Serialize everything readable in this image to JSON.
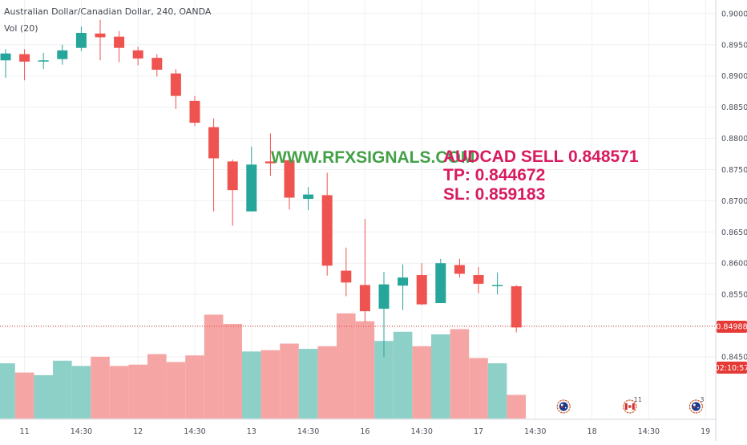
{
  "header": {
    "symbol_line": "Australian Dollar/Canadian Dollar, 240, OANDA",
    "volume_label": "Vol (20)"
  },
  "colors": {
    "up": "#26a69a",
    "down": "#ef5350",
    "vol_up": "#8dd0c8",
    "vol_down": "#f6a5a5",
    "grid": "#eef0f3",
    "price_line": "#e53935",
    "website": "#43a047",
    "signal": "#d81b60"
  },
  "annotations": {
    "website": "WWW.RFXSIGNALS.COM",
    "signal": "AUDCAD SELL 0.848571",
    "tp": "TP:  0.844672",
    "sl": "SL: 0.859183"
  },
  "price_axis": {
    "current_price_label": "0.84988",
    "countdown_label": "02:10:57"
  },
  "events": [
    {
      "index": 29.5,
      "icon": "australia-flag-icon",
      "count": ""
    },
    {
      "index": 33,
      "icon": "canada-flag-icon",
      "count": "11"
    },
    {
      "index": 36.5,
      "icon": "australia-flag-icon",
      "count": "3"
    }
  ],
  "chart_data": {
    "type": "candlestick",
    "symbol": "Australian Dollar/Canadian Dollar",
    "interval": "240",
    "source": "OANDA",
    "ylim": [
      0.8405,
      0.9005
    ],
    "yticks": [
      "0.90000",
      "0.89500",
      "0.89000",
      "0.88500",
      "0.88000",
      "0.87500",
      "0.87000",
      "0.86500",
      "0.86000",
      "0.85500",
      "0.85000",
      "0.84500"
    ],
    "xticks": [
      {
        "index": 1,
        "label": "11"
      },
      {
        "index": 4,
        "label": "14:30"
      },
      {
        "index": 7,
        "label": "12"
      },
      {
        "index": 10,
        "label": "14:30"
      },
      {
        "index": 13,
        "label": "13"
      },
      {
        "index": 16,
        "label": "14:30"
      },
      {
        "index": 19,
        "label": "16"
      },
      {
        "index": 22,
        "label": "14:30"
      },
      {
        "index": 25,
        "label": "17"
      },
      {
        "index": 28,
        "label": "14:30"
      },
      {
        "index": 31,
        "label": "18"
      },
      {
        "index": 34,
        "label": "14:30"
      },
      {
        "index": 37,
        "label": "19"
      }
    ],
    "last_price": 0.84988,
    "candles": [
      {
        "o": 0.8925,
        "h": 0.8943,
        "l": 0.8897,
        "c": 0.8936
      },
      {
        "o": 0.8935,
        "h": 0.8943,
        "l": 0.8893,
        "c": 0.8923
      },
      {
        "o": 0.8923,
        "h": 0.8937,
        "l": 0.8911,
        "c": 0.8925
      },
      {
        "o": 0.8927,
        "h": 0.895,
        "l": 0.8918,
        "c": 0.8941
      },
      {
        "o": 0.8945,
        "h": 0.8979,
        "l": 0.894,
        "c": 0.8969
      },
      {
        "o": 0.8968,
        "h": 0.899,
        "l": 0.8925,
        "c": 0.8962
      },
      {
        "o": 0.8963,
        "h": 0.8972,
        "l": 0.8922,
        "c": 0.8945
      },
      {
        "o": 0.8941,
        "h": 0.8947,
        "l": 0.8917,
        "c": 0.8928
      },
      {
        "o": 0.8929,
        "h": 0.8935,
        "l": 0.8899,
        "c": 0.891
      },
      {
        "o": 0.8904,
        "h": 0.8911,
        "l": 0.8847,
        "c": 0.8868
      },
      {
        "o": 0.886,
        "h": 0.8868,
        "l": 0.882,
        "c": 0.8825
      },
      {
        "o": 0.8818,
        "h": 0.8832,
        "l": 0.8683,
        "c": 0.8768
      },
      {
        "o": 0.8763,
        "h": 0.8766,
        "l": 0.866,
        "c": 0.8717
      },
      {
        "o": 0.8683,
        "h": 0.8787,
        "l": 0.8683,
        "c": 0.8758
      },
      {
        "o": 0.8763,
        "h": 0.8808,
        "l": 0.874,
        "c": 0.876
      },
      {
        "o": 0.8765,
        "h": 0.8776,
        "l": 0.8686,
        "c": 0.8705
      },
      {
        "o": 0.8703,
        "h": 0.8722,
        "l": 0.8685,
        "c": 0.871
      },
      {
        "o": 0.8709,
        "h": 0.8745,
        "l": 0.858,
        "c": 0.8596
      },
      {
        "o": 0.8588,
        "h": 0.8625,
        "l": 0.8547,
        "c": 0.8569
      },
      {
        "o": 0.8565,
        "h": 0.8671,
        "l": 0.8505,
        "c": 0.8523
      },
      {
        "o": 0.8527,
        "h": 0.8586,
        "l": 0.845,
        "c": 0.8566
      },
      {
        "o": 0.8564,
        "h": 0.8598,
        "l": 0.8525,
        "c": 0.8577
      },
      {
        "o": 0.8581,
        "h": 0.86,
        "l": 0.8533,
        "c": 0.8534
      },
      {
        "o": 0.8536,
        "h": 0.8607,
        "l": 0.8536,
        "c": 0.86
      },
      {
        "o": 0.8597,
        "h": 0.8607,
        "l": 0.8577,
        "c": 0.8583
      },
      {
        "o": 0.8581,
        "h": 0.8594,
        "l": 0.8552,
        "c": 0.8567
      },
      {
        "o": 0.8565,
        "h": 0.8585,
        "l": 0.855,
        "c": 0.8565
      },
      {
        "o": 0.8563,
        "h": 0.8565,
        "l": 0.8489,
        "c": 0.8497
      }
    ],
    "volume": {
      "label": "Vol (20)",
      "max": 100,
      "values": [
        42,
        35,
        33,
        44,
        40,
        47,
        40,
        41,
        49,
        43,
        48,
        79,
        72,
        51,
        52,
        57,
        53,
        55,
        80,
        74,
        59,
        66,
        55,
        64,
        68,
        46,
        42,
        18
      ]
    }
  }
}
